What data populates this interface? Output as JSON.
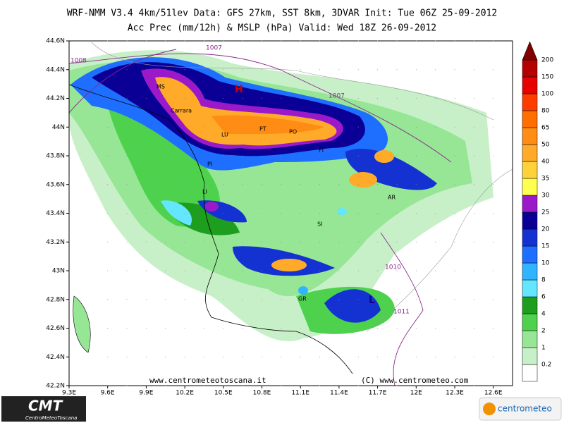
{
  "header": {
    "line1": "WRF-NMM V3.4 4km/51lev   Data: GFS 27km, SST 8km, 3DVAR   Init: Tue 06Z 25-09-2012",
    "line2": "Acc Prec (mm/12h) & MSLP (hPa)   Valid: Wed 18Z 26-09-2012"
  },
  "map": {
    "lat_ticks": [
      "44.6N",
      "44.4N",
      "44.2N",
      "44N",
      "43.8N",
      "43.6N",
      "43.4N",
      "43.2N",
      "43N",
      "42.8N",
      "42.6N",
      "42.4N",
      "42.2N"
    ],
    "lon_ticks": [
      "9.3E",
      "9.6E",
      "9.9E",
      "10.2E",
      "10.5E",
      "10.8E",
      "11.1E",
      "11.4E",
      "11.7E",
      "12E",
      "12.3E",
      "12.6E"
    ],
    "cities": [
      "MS",
      "Carrara",
      "LU",
      "PT",
      "PO",
      "FI",
      "PI",
      "LI",
      "SI",
      "AR",
      "GR"
    ],
    "isobars": [
      "1007",
      "1008",
      "1007",
      "1010",
      "1011"
    ],
    "high": "H",
    "low": "L",
    "credit_left": "www.centrometeotoscana.it",
    "credit_right": "(C) www.centrometeo.com"
  },
  "legend": {
    "labels": [
      "0.2",
      "1",
      "2",
      "4",
      "6",
      "8",
      "10",
      "15",
      "20",
      "25",
      "30",
      "35",
      "40",
      "50",
      "65",
      "80",
      "100",
      "150",
      "200"
    ],
    "colors": [
      "#ffffff",
      "#c8f0c8",
      "#96e696",
      "#4ed24e",
      "#1e9e1e",
      "#64e6ff",
      "#30b4ff",
      "#1e6eff",
      "#1432d2",
      "#0a0096",
      "#9b19c8",
      "#ffff50",
      "#ffd23c",
      "#ffaa28",
      "#ff8c14",
      "#ff6e00",
      "#ff3c00",
      "#e60000",
      "#b40000",
      "#800000"
    ]
  },
  "logos": {
    "cmt": "CMT",
    "cmt_sub": "CentroMeteoToscana",
    "centrometeo": "centrometeo"
  }
}
